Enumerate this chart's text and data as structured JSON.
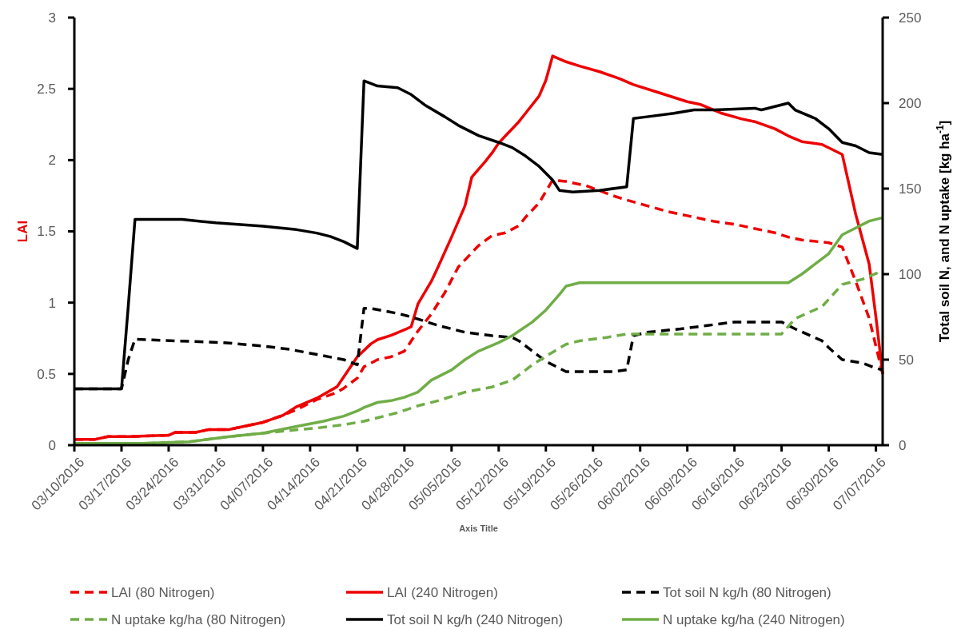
{
  "chart_data": {
    "type": "line",
    "xlabel": "Axis Title",
    "ylabel": "LAI",
    "y2label": "Total soil N, and N uptake [kg ha$^{-1}$]",
    "xlim": [
      "2016-03-10",
      "2016-07-08"
    ],
    "xticks": [
      {
        "value": "2016-03-10",
        "label": "03/10/2016"
      },
      {
        "value": "2016-03-17",
        "label": "03/17/2016"
      },
      {
        "value": "2016-03-24",
        "label": "03/24/2016"
      },
      {
        "value": "2016-03-31",
        "label": "03/31/2016"
      },
      {
        "value": "2016-04-07",
        "label": "04/07/2016"
      },
      {
        "value": "2016-04-14",
        "label": "04/14/2016"
      },
      {
        "value": "2016-04-21",
        "label": "04/21/2016"
      },
      {
        "value": "2016-04-28",
        "label": "04/28/2016"
      },
      {
        "value": "2016-05-05",
        "label": "05/05/2016"
      },
      {
        "value": "2016-05-12",
        "label": "05/12/2016"
      },
      {
        "value": "2016-05-19",
        "label": "05/19/2016"
      },
      {
        "value": "2016-05-26",
        "label": "05/26/2016"
      },
      {
        "value": "2016-06-02",
        "label": "06/02/2016"
      },
      {
        "value": "2016-06-09",
        "label": "06/09/2016"
      },
      {
        "value": "2016-06-16",
        "label": "06/16/2016"
      },
      {
        "value": "2016-06-23",
        "label": "06/23/2016"
      },
      {
        "value": "2016-06-30",
        "label": "06/30/2016"
      },
      {
        "value": "2016-07-07",
        "label": "07/07/2016"
      }
    ],
    "ylim": [
      0,
      3
    ],
    "yticks": [
      0,
      0.5,
      1,
      1.5,
      2,
      2.5,
      3
    ],
    "y2lim": [
      0,
      250
    ],
    "y2ticks": [
      0,
      50,
      100,
      150,
      200,
      250
    ],
    "legend": "bottom",
    "series": [
      {
        "name": "LAI (80 Nitrogen)",
        "color": "#ee0000",
        "line_style": "dashed",
        "axis": "y",
        "x": [
          "2016-03-10",
          "2016-03-13",
          "2016-03-15",
          "2016-03-18",
          "2016-03-24",
          "2016-03-25",
          "2016-03-28",
          "2016-03-30",
          "2016-04-02",
          "2016-04-04",
          "2016-04-07",
          "2016-04-10",
          "2016-04-12",
          "2016-04-15",
          "2016-04-18",
          "2016-04-19",
          "2016-04-21",
          "2016-04-22",
          "2016-04-24",
          "2016-04-26",
          "2016-04-28",
          "2016-04-30",
          "2016-05-02",
          "2016-05-04",
          "2016-05-06",
          "2016-05-09",
          "2016-05-11",
          "2016-05-13",
          "2016-05-15",
          "2016-05-16",
          "2016-05-18",
          "2016-05-20",
          "2016-05-22",
          "2016-05-25",
          "2016-05-29",
          "2016-05-31",
          "2016-06-03",
          "2016-06-06",
          "2016-06-09",
          "2016-06-13",
          "2016-06-16",
          "2016-06-19",
          "2016-06-22",
          "2016-06-24",
          "2016-06-26",
          "2016-06-30",
          "2016-07-02",
          "2016-07-04",
          "2016-07-06",
          "2016-07-08"
        ],
        "values": [
          0.04,
          0.04,
          0.06,
          0.06,
          0.07,
          0.09,
          0.09,
          0.11,
          0.11,
          0.13,
          0.16,
          0.21,
          0.25,
          0.32,
          0.37,
          0.4,
          0.47,
          0.55,
          0.6,
          0.62,
          0.66,
          0.8,
          0.92,
          1.07,
          1.25,
          1.4,
          1.47,
          1.49,
          1.54,
          1.6,
          1.7,
          1.86,
          1.85,
          1.82,
          1.75,
          1.72,
          1.68,
          1.64,
          1.61,
          1.57,
          1.55,
          1.52,
          1.49,
          1.46,
          1.44,
          1.42,
          1.39,
          1.15,
          0.89,
          0.5
        ]
      },
      {
        "name": "LAI (240 Nitrogen)",
        "color": "#ee0000",
        "line_style": "solid",
        "axis": "y",
        "x": [
          "2016-03-10",
          "2016-03-13",
          "2016-03-15",
          "2016-03-18",
          "2016-03-24",
          "2016-03-25",
          "2016-03-28",
          "2016-03-30",
          "2016-04-02",
          "2016-04-04",
          "2016-04-07",
          "2016-04-10",
          "2016-04-12",
          "2016-04-15",
          "2016-04-18",
          "2016-04-19",
          "2016-04-21",
          "2016-04-23",
          "2016-04-24",
          "2016-04-26",
          "2016-04-29",
          "2016-04-30",
          "2016-05-02",
          "2016-05-03",
          "2016-05-05",
          "2016-05-07",
          "2016-05-08",
          "2016-05-10",
          "2016-05-11",
          "2016-05-12",
          "2016-05-13",
          "2016-05-15",
          "2016-05-16",
          "2016-05-18",
          "2016-05-19",
          "2016-05-20",
          "2016-05-22",
          "2016-05-24",
          "2016-05-27",
          "2016-05-30",
          "2016-06-01",
          "2016-06-05",
          "2016-06-09",
          "2016-06-11",
          "2016-06-14",
          "2016-06-17",
          "2016-06-19",
          "2016-06-22",
          "2016-06-24",
          "2016-06-26",
          "2016-06-29",
          "2016-07-02",
          "2016-07-04",
          "2016-07-06",
          "2016-07-07",
          "2016-07-08"
        ],
        "values": [
          0.04,
          0.04,
          0.06,
          0.06,
          0.07,
          0.09,
          0.09,
          0.11,
          0.11,
          0.13,
          0.16,
          0.21,
          0.27,
          0.33,
          0.41,
          0.48,
          0.62,
          0.71,
          0.74,
          0.77,
          0.83,
          0.99,
          1.15,
          1.25,
          1.46,
          1.68,
          1.88,
          1.99,
          2.05,
          2.12,
          2.17,
          2.27,
          2.33,
          2.45,
          2.56,
          2.73,
          2.69,
          2.66,
          2.62,
          2.57,
          2.53,
          2.47,
          2.41,
          2.39,
          2.33,
          2.29,
          2.27,
          2.22,
          2.17,
          2.13,
          2.11,
          2.04,
          1.62,
          1.27,
          0.9,
          0.5
        ]
      },
      {
        "name": "Tot soil N kg/h (80 Nitrogen)",
        "color": "#000000",
        "line_style": "dashed",
        "axis": "y2",
        "x": [
          "2016-03-10",
          "2016-03-17",
          "2016-03-18",
          "2016-03-19",
          "2016-03-25",
          "2016-04-01",
          "2016-04-07",
          "2016-04-11",
          "2016-04-15",
          "2016-04-19",
          "2016-04-21",
          "2016-04-22",
          "2016-04-23",
          "2016-04-27",
          "2016-04-29",
          "2016-05-03",
          "2016-05-07",
          "2016-05-11",
          "2016-05-14",
          "2016-05-15",
          "2016-05-17",
          "2016-05-19",
          "2016-05-22",
          "2016-05-26",
          "2016-05-29",
          "2016-05-31",
          "2016-06-01",
          "2016-06-03",
          "2016-06-08",
          "2016-06-12",
          "2016-06-16",
          "2016-06-20",
          "2016-06-23",
          "2016-06-25",
          "2016-06-29",
          "2016-06-30",
          "2016-07-02",
          "2016-07-05",
          "2016-07-07",
          "2016-07-08"
        ],
        "values": [
          33,
          33,
          50,
          62,
          61,
          60,
          58,
          56,
          53,
          50,
          47,
          80,
          80,
          77,
          75,
          70,
          66,
          64,
          63,
          61,
          55,
          49,
          43,
          43,
          43,
          44,
          64,
          66,
          68,
          70,
          72,
          72,
          72,
          68,
          61,
          57,
          50,
          48,
          45,
          44
        ]
      },
      {
        "name": "N uptake kg/ha (80 Nitrogen)",
        "color": "#70ad47",
        "line_style": "dashed",
        "axis": "y2",
        "x": [
          "2016-03-10",
          "2016-03-20",
          "2016-03-27",
          "2016-04-02",
          "2016-04-07",
          "2016-04-12",
          "2016-04-15",
          "2016-04-19",
          "2016-04-22",
          "2016-04-24",
          "2016-04-27",
          "2016-04-30",
          "2016-05-03",
          "2016-05-07",
          "2016-05-11",
          "2016-05-14",
          "2016-05-17",
          "2016-05-19",
          "2016-05-22",
          "2016-05-24",
          "2016-05-28",
          "2016-05-31",
          "2016-06-23",
          "2016-06-25",
          "2016-06-29",
          "2016-07-02",
          "2016-07-05",
          "2016-07-08"
        ],
        "values": [
          1,
          1,
          2,
          5,
          7,
          9,
          10,
          12,
          14,
          16,
          19,
          23,
          26,
          31,
          34,
          38,
          47,
          52,
          59,
          61,
          63,
          65,
          65,
          74,
          81,
          94,
          97,
          102
        ]
      },
      {
        "name": "Tot soil N kg/h (240 Nitrogen)",
        "color": "#000000",
        "line_style": "solid",
        "axis": "y2",
        "x": [
          "2016-03-10",
          "2016-03-17",
          "2016-03-18",
          "2016-03-19",
          "2016-03-26",
          "2016-03-31",
          "2016-04-07",
          "2016-04-12",
          "2016-04-15",
          "2016-04-17",
          "2016-04-19",
          "2016-04-21",
          "2016-04-22",
          "2016-04-24",
          "2016-04-27",
          "2016-04-29",
          "2016-05-01",
          "2016-05-04",
          "2016-05-06",
          "2016-05-09",
          "2016-05-12",
          "2016-05-14",
          "2016-05-16",
          "2016-05-18",
          "2016-05-20",
          "2016-05-21",
          "2016-05-23",
          "2016-05-27",
          "2016-05-31",
          "2016-06-01",
          "2016-06-03",
          "2016-06-07",
          "2016-06-10",
          "2016-06-13",
          "2016-06-19",
          "2016-06-20",
          "2016-06-22",
          "2016-06-24",
          "2016-06-25",
          "2016-06-28",
          "2016-06-30",
          "2016-07-02",
          "2016-07-04",
          "2016-07-06",
          "2016-07-08"
        ],
        "values": [
          33,
          33,
          81,
          132,
          132,
          130,
          128,
          126,
          124,
          122,
          119,
          115,
          213,
          210,
          209,
          205,
          199,
          192,
          187,
          181,
          177,
          174,
          169,
          163,
          155,
          149,
          148,
          149,
          151,
          191,
          192,
          194,
          196,
          196,
          197,
          196,
          198,
          200,
          196,
          191,
          185,
          177,
          175,
          171,
          170
        ]
      },
      {
        "name": "N uptake kg/ha (240 Nitrogen)",
        "color": "#70ad47",
        "line_style": "solid",
        "axis": "y2",
        "x": [
          "2016-03-10",
          "2016-03-20",
          "2016-03-27",
          "2016-04-02",
          "2016-04-07",
          "2016-04-12",
          "2016-04-16",
          "2016-04-19",
          "2016-04-21",
          "2016-04-22",
          "2016-04-24",
          "2016-04-26",
          "2016-04-28",
          "2016-04-30",
          "2016-05-02",
          "2016-05-05",
          "2016-05-07",
          "2016-05-09",
          "2016-05-12",
          "2016-05-14",
          "2016-05-17",
          "2016-05-19",
          "2016-05-21",
          "2016-05-22",
          "2016-05-24",
          "2016-06-24",
          "2016-06-26",
          "2016-06-28",
          "2016-06-30",
          "2016-07-02",
          "2016-07-04",
          "2016-07-06",
          "2016-07-08"
        ],
        "values": [
          1,
          1,
          2,
          5,
          7,
          11,
          14,
          17,
          20,
          22,
          25,
          26,
          28,
          31,
          38,
          44,
          50,
          55,
          60,
          64,
          72,
          79,
          88,
          93,
          95,
          95,
          100,
          106,
          112,
          123,
          127,
          131,
          133
        ]
      }
    ]
  }
}
